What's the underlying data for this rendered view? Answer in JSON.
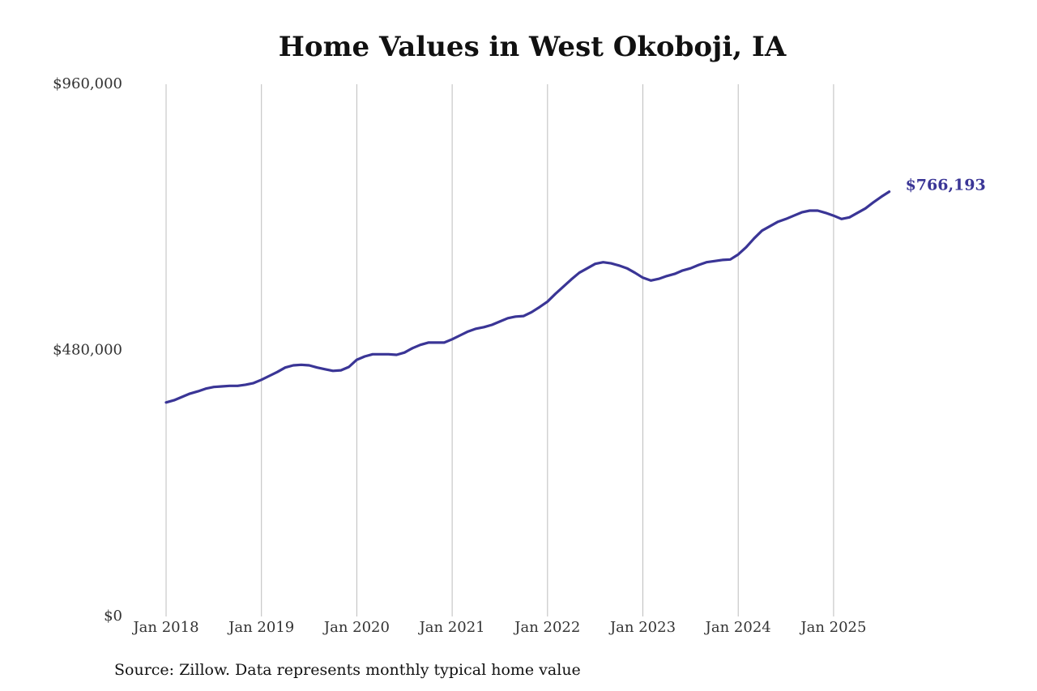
{
  "chart_data": {
    "type": "line",
    "title": "Home Values in West Okoboji, IA",
    "source": "Source: Zillow. Data represents monthly typical home value",
    "color": "#3a3596",
    "x": [
      "2018-01",
      "2018-02",
      "2018-03",
      "2018-04",
      "2018-05",
      "2018-06",
      "2018-07",
      "2018-08",
      "2018-09",
      "2018-10",
      "2018-11",
      "2018-12",
      "2019-01",
      "2019-02",
      "2019-03",
      "2019-04",
      "2019-05",
      "2019-06",
      "2019-07",
      "2019-08",
      "2019-09",
      "2019-10",
      "2019-11",
      "2019-12",
      "2020-01",
      "2020-02",
      "2020-03",
      "2020-04",
      "2020-05",
      "2020-06",
      "2020-07",
      "2020-08",
      "2020-09",
      "2020-10",
      "2020-11",
      "2020-12",
      "2021-01",
      "2021-02",
      "2021-03",
      "2021-04",
      "2021-05",
      "2021-06",
      "2021-07",
      "2021-08",
      "2021-09",
      "2021-10",
      "2021-11",
      "2021-12",
      "2022-01",
      "2022-02",
      "2022-03",
      "2022-04",
      "2022-05",
      "2022-06",
      "2022-07",
      "2022-08",
      "2022-09",
      "2022-10",
      "2022-11",
      "2022-12",
      "2023-01",
      "2023-02",
      "2023-03",
      "2023-04",
      "2023-05",
      "2023-06",
      "2023-07",
      "2023-08",
      "2023-09",
      "2023-10",
      "2023-11",
      "2023-12",
      "2024-01",
      "2024-02",
      "2024-03",
      "2024-04",
      "2024-05",
      "2024-06",
      "2024-07",
      "2024-08",
      "2024-09",
      "2024-10",
      "2024-11",
      "2024-12",
      "2025-01",
      "2025-02",
      "2025-03",
      "2025-04",
      "2025-05",
      "2025-06",
      "2025-07",
      "2025-08"
    ],
    "values": [
      386000,
      390000,
      396000,
      402000,
      406000,
      411000,
      414000,
      415000,
      416000,
      416000,
      418000,
      421000,
      427000,
      434000,
      441000,
      449000,
      453000,
      454000,
      453000,
      449000,
      446000,
      443000,
      444000,
      450000,
      463000,
      469000,
      473000,
      473000,
      473000,
      472000,
      476000,
      484000,
      490000,
      494000,
      494000,
      494000,
      500000,
      507000,
      514000,
      519000,
      522000,
      526000,
      532000,
      538000,
      541000,
      542000,
      549000,
      558000,
      568000,
      582000,
      595000,
      608000,
      620000,
      628000,
      636000,
      639000,
      637000,
      633000,
      628000,
      620000,
      611000,
      606000,
      609000,
      614000,
      618000,
      624000,
      628000,
      634000,
      639000,
      641000,
      643000,
      644000,
      653000,
      666000,
      682000,
      696000,
      704000,
      712000,
      717000,
      723000,
      729000,
      732000,
      732000,
      728000,
      723000,
      717000,
      720000,
      728000,
      736000,
      747000,
      757000,
      766193
    ],
    "end_label": "$766,193",
    "xlim": [
      "2017-11",
      "2025-11"
    ],
    "xticks": [
      {
        "value": "2018-01",
        "label": "Jan 2018"
      },
      {
        "value": "2019-01",
        "label": "Jan 2019"
      },
      {
        "value": "2020-01",
        "label": "Jan 2020"
      },
      {
        "value": "2021-01",
        "label": "Jan 2021"
      },
      {
        "value": "2022-01",
        "label": "Jan 2022"
      },
      {
        "value": "2023-01",
        "label": "Jan 2023"
      },
      {
        "value": "2024-01",
        "label": "Jan 2024"
      },
      {
        "value": "2025-01",
        "label": "Jan 2025"
      }
    ],
    "ylim": [
      0,
      960000
    ],
    "yticks": [
      {
        "value": 0,
        "label": "$0"
      },
      {
        "value": 480000,
        "label": "$480,000"
      },
      {
        "value": 960000,
        "label": "$960,000"
      }
    ],
    "grid": "x"
  }
}
